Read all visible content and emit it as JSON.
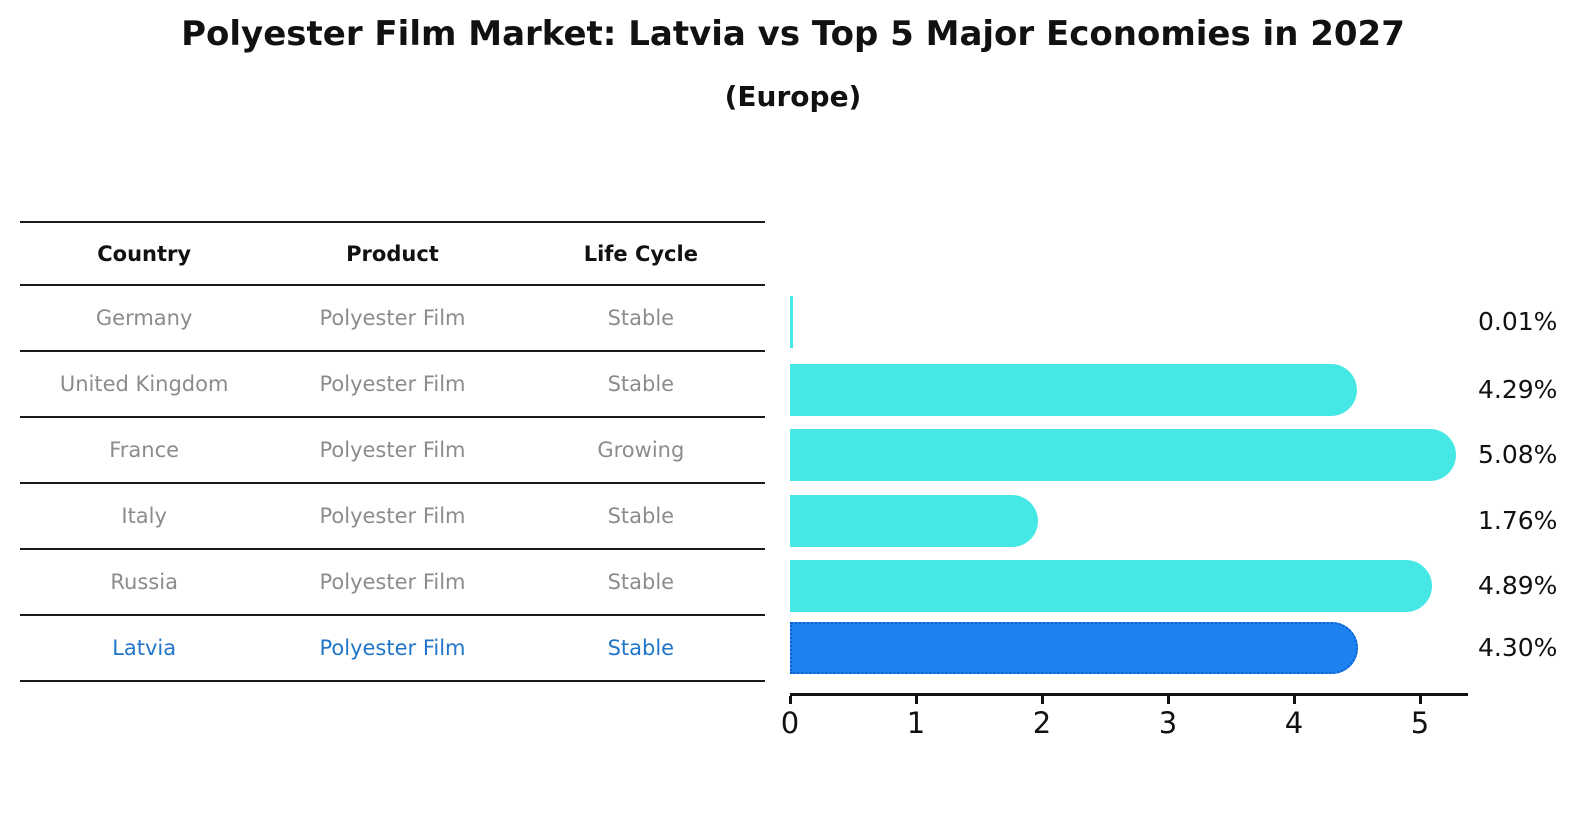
{
  "title": "Polyester Film Market: Latvia vs Top 5 Major Economies in 2027",
  "subtitle": "(Europe)",
  "table": {
    "headers": [
      "Country",
      "Product",
      "Life Cycle"
    ],
    "rows": [
      {
        "country": "Germany",
        "product": "Polyester Film",
        "life_cycle": "Stable",
        "highlight": false
      },
      {
        "country": "United Kingdom",
        "product": "Polyester Film",
        "life_cycle": "Stable",
        "highlight": false
      },
      {
        "country": "France",
        "product": "Polyester Film",
        "life_cycle": "Growing",
        "highlight": false
      },
      {
        "country": "Italy",
        "product": "Polyester Film",
        "life_cycle": "Stable",
        "highlight": false
      },
      {
        "country": "Russia",
        "product": "Polyester Film",
        "life_cycle": "Stable",
        "highlight": false
      },
      {
        "country": "Latvia",
        "product": "Polyester Film",
        "life_cycle": "Stable",
        "highlight": true
      }
    ]
  },
  "chart_data": {
    "type": "bar",
    "orientation": "horizontal",
    "title": "Polyester Film Market: Latvia vs Top 5 Major Economies in 2027",
    "subtitle": "(Europe)",
    "categories": [
      "Germany",
      "United Kingdom",
      "France",
      "Italy",
      "Russia",
      "Latvia"
    ],
    "values": [
      0.01,
      4.29,
      5.08,
      1.76,
      4.89,
      4.3
    ],
    "value_labels": [
      "0.01%",
      "4.29%",
      "5.08%",
      "1.76%",
      "4.89%",
      "4.30%"
    ],
    "xlabel": "",
    "ylabel": "",
    "xlim": [
      0,
      5.38
    ],
    "xticks": [
      "0",
      "1",
      "2",
      "3",
      "4",
      "5"
    ],
    "grid": false,
    "legend": false,
    "highlight_index": 5,
    "colors": {
      "bar": "#46e8e6",
      "highlight_bar": "#1e82f0",
      "highlight_border": "#0e63cf",
      "highlight_text": "#2276c9",
      "table_text": "#8c8c8c",
      "text": "#111111",
      "line": "#1a1a1a"
    }
  }
}
